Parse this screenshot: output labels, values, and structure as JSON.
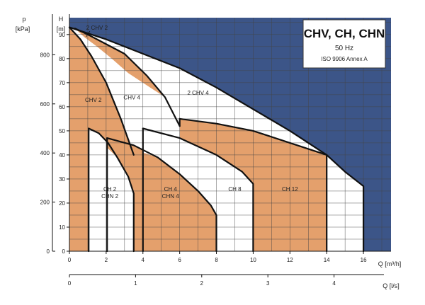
{
  "chart_data": {
    "type": "area",
    "title": "CHV, CH, CHN",
    "frequency": "50 Hz",
    "standard": "ISO 9906 Annex A",
    "x_axis": {
      "label": "Q [m³/h]",
      "range": [
        0,
        17.5
      ],
      "ticks": [
        0,
        2,
        4,
        6,
        8,
        10,
        12,
        14,
        16
      ]
    },
    "x2_axis": {
      "label": "Q [l/s]",
      "ticks": [
        0,
        1,
        2,
        3,
        4
      ],
      "m3h_per_unit": 3.6
    },
    "y_axis": {
      "label_top": "H",
      "label_unit": "[m]",
      "range": [
        0,
        97
      ],
      "ticks": [
        0,
        10,
        20,
        30,
        40,
        50,
        60,
        70,
        80,
        90
      ]
    },
    "y2_axis": {
      "label_top": "p",
      "label_unit": "[kPa]",
      "ticks": [
        0,
        200,
        400,
        600,
        800
      ],
      "m_per_unit": 0.102
    },
    "colors": {
      "orange": "#e4a06c",
      "blue": "#3c5588",
      "grid": "#444444",
      "curve": "#111111"
    },
    "regions": [
      {
        "label": "CHV 2",
        "color": "orange",
        "polygon": [
          [
            0,
            93
          ],
          [
            0.6,
            88
          ],
          [
            1.2,
            81
          ],
          [
            2,
            70
          ],
          [
            2.8,
            55
          ],
          [
            3.3,
            45
          ],
          [
            3.5,
            42
          ],
          [
            3.3,
            39
          ],
          [
            2.9,
            35
          ],
          [
            2.4,
            31
          ],
          [
            1.8,
            20
          ],
          [
            1.3,
            10
          ],
          [
            1.05,
            0
          ],
          [
            0,
            0
          ]
        ]
      },
      {
        "label": "2 CHV 2",
        "color": "orange",
        "polygon": [
          [
            0.3,
            92.5
          ],
          [
            1,
            90
          ],
          [
            2,
            86
          ],
          [
            3,
            82
          ],
          [
            4.2,
            73
          ],
          [
            4.8,
            67
          ],
          [
            5.2,
            64
          ],
          [
            4.4,
            68
          ],
          [
            3.2,
            74
          ],
          [
            2.3,
            80
          ],
          [
            1.5,
            85
          ],
          [
            0.8,
            89
          ]
        ]
      },
      {
        "label": "CH 2 / CHN 2",
        "color": "white",
        "polygon": [
          [
            1.05,
            51
          ],
          [
            1.6,
            49
          ],
          [
            2.1,
            45
          ],
          [
            2.6,
            39
          ],
          [
            3.2,
            31
          ],
          [
            3.5,
            24
          ],
          [
            3.5,
            0
          ],
          [
            1.05,
            0
          ]
        ]
      },
      {
        "label": "CH 4 / CHN 4",
        "color": "orange",
        "polygon": [
          [
            2.05,
            47
          ],
          [
            3.5,
            44
          ],
          [
            4.8,
            39
          ],
          [
            6,
            32
          ],
          [
            7,
            25
          ],
          [
            7.7,
            19
          ],
          [
            8,
            15
          ],
          [
            8,
            0
          ],
          [
            3.5,
            0
          ],
          [
            3.5,
            24
          ],
          [
            3.2,
            31
          ],
          [
            2.6,
            39
          ],
          [
            2.05,
            43
          ]
        ]
      },
      {
        "label": "CH 8",
        "color": "white",
        "polygon": [
          [
            4,
            51
          ],
          [
            6,
            47
          ],
          [
            8,
            40
          ],
          [
            9.4,
            33
          ],
          [
            10,
            28
          ],
          [
            10,
            0
          ],
          [
            8,
            0
          ],
          [
            8,
            15
          ],
          [
            7.7,
            19
          ],
          [
            7,
            25
          ],
          [
            6,
            32
          ],
          [
            4.8,
            39
          ],
          [
            4,
            41
          ]
        ]
      },
      {
        "label": "CH 12",
        "color": "orange",
        "polygon": [
          [
            6,
            55
          ],
          [
            8,
            53
          ],
          [
            10,
            50
          ],
          [
            12,
            45
          ],
          [
            14,
            40
          ],
          [
            14,
            0
          ],
          [
            10,
            0
          ],
          [
            10,
            28
          ],
          [
            9.4,
            33
          ],
          [
            8,
            40
          ],
          [
            6,
            47
          ]
        ]
      }
    ],
    "text_labels": [
      {
        "text": "CHV 2",
        "x": 1.3,
        "y": 62
      },
      {
        "text": "CHV 4",
        "x": 3.4,
        "y": 63
      },
      {
        "text": "2 CHV 4",
        "x": 7,
        "y": 65
      },
      {
        "text": "2 CHV 2",
        "x": 1.5,
        "y": 92
      },
      {
        "text": "CH 2",
        "x": 2.2,
        "y": 25
      },
      {
        "text": "CHN 2",
        "x": 2.2,
        "y": 22
      },
      {
        "text": "CH 4",
        "x": 5.5,
        "y": 25
      },
      {
        "text": "CHN 4",
        "x": 5.5,
        "y": 22
      },
      {
        "text": "CH 8",
        "x": 9,
        "y": 25
      },
      {
        "text": "CH 12",
        "x": 12,
        "y": 25
      }
    ],
    "blue_boundary": [
      [
        0,
        93
      ],
      [
        2,
        88
      ],
      [
        4,
        82
      ],
      [
        6,
        76
      ],
      [
        8,
        68
      ],
      [
        10,
        59
      ],
      [
        12,
        50
      ],
      [
        14,
        40
      ],
      [
        15,
        33
      ],
      [
        16,
        27
      ],
      [
        16,
        0
      ],
      [
        17.5,
        0
      ],
      [
        17.5,
        97
      ],
      [
        0,
        97
      ]
    ],
    "curves": [
      [
        [
          0,
          93
        ],
        [
          2,
          88
        ],
        [
          4,
          82
        ],
        [
          6,
          76
        ],
        [
          8,
          68
        ],
        [
          10,
          59
        ],
        [
          12,
          50
        ],
        [
          14,
          40
        ],
        [
          15,
          33
        ],
        [
          16,
          27
        ],
        [
          16,
          0
        ]
      ],
      [
        [
          0,
          93
        ],
        [
          0.6,
          88
        ],
        [
          1.2,
          81
        ],
        [
          2,
          70
        ],
        [
          2.8,
          55
        ],
        [
          3.5,
          40
        ]
      ],
      [
        [
          0.3,
          92.5
        ],
        [
          1,
          90
        ],
        [
          2,
          86
        ],
        [
          3,
          82
        ],
        [
          4.2,
          73
        ],
        [
          5.2,
          64
        ],
        [
          6,
          52
        ]
      ],
      [
        [
          1.05,
          51
        ],
        [
          1.6,
          49
        ],
        [
          2.1,
          45
        ],
        [
          2.6,
          39
        ],
        [
          3.2,
          31
        ],
        [
          3.5,
          24
        ],
        [
          3.5,
          0
        ]
      ],
      [
        [
          2.05,
          47
        ],
        [
          3.5,
          44
        ],
        [
          4.8,
          39
        ],
        [
          6,
          32
        ],
        [
          7,
          25
        ],
        [
          7.7,
          19
        ],
        [
          8,
          15
        ],
        [
          8,
          0
        ]
      ],
      [
        [
          4,
          51
        ],
        [
          6,
          47
        ],
        [
          8,
          40
        ],
        [
          9.4,
          33
        ],
        [
          10,
          28
        ],
        [
          10,
          0
        ]
      ],
      [
        [
          6,
          55
        ],
        [
          8,
          53
        ],
        [
          10,
          50
        ],
        [
          12,
          45
        ],
        [
          14,
          40
        ],
        [
          14,
          0
        ]
      ],
      [
        [
          1.05,
          51
        ],
        [
          1.05,
          0
        ]
      ],
      [
        [
          2.05,
          47
        ],
        [
          2.05,
          0
        ]
      ],
      [
        [
          4,
          51
        ],
        [
          4,
          0
        ]
      ],
      [
        [
          6,
          55
        ],
        [
          6,
          52
        ]
      ]
    ]
  }
}
